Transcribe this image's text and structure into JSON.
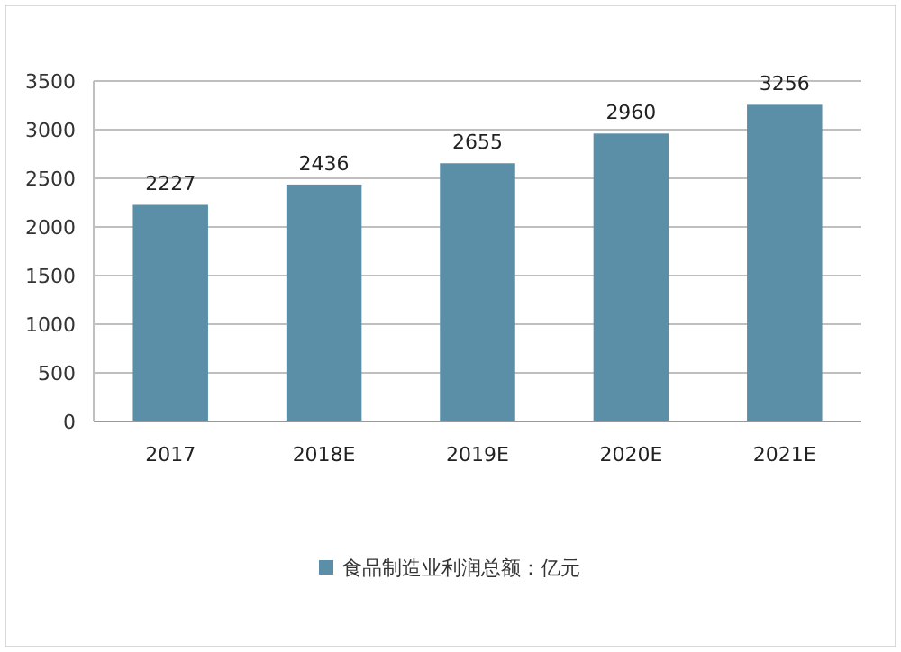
{
  "chart_data": {
    "type": "bar",
    "categories": [
      "2017",
      "2018E",
      "2019E",
      "2020E",
      "2021E"
    ],
    "series": [
      {
        "name": "食品制造业利润总额：亿元",
        "color": "#5b8fa8",
        "values": [
          2227,
          2436,
          2655,
          2960,
          3256
        ]
      }
    ],
    "ylim": [
      0,
      3500
    ],
    "yticks": [
      0,
      500,
      1000,
      1500,
      2000,
      2500,
      3000,
      3500
    ],
    "grid": "y",
    "legend": "bottom",
    "data_labels": true
  }
}
